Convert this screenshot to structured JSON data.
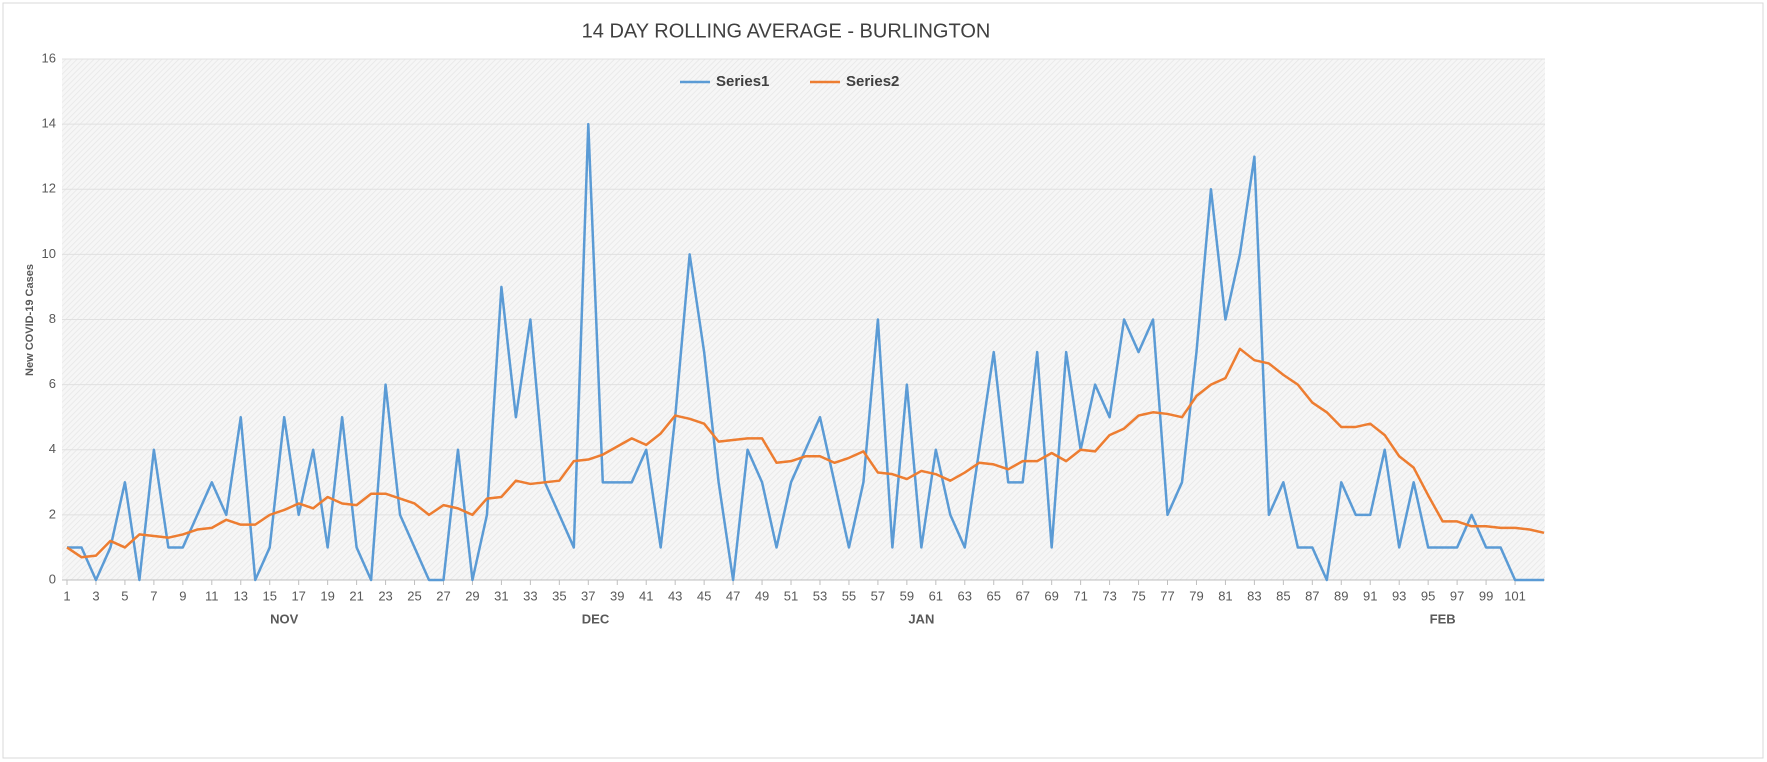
{
  "chart_data": {
    "type": "line",
    "title": "14 DAY ROLLING AVERAGE - BURLINGTON",
    "y_label": "New COVID-19 Cases",
    "x": [
      1,
      2,
      3,
      4,
      5,
      6,
      7,
      8,
      9,
      10,
      11,
      12,
      13,
      14,
      15,
      16,
      17,
      18,
      19,
      20,
      21,
      22,
      23,
      24,
      25,
      26,
      27,
      28,
      29,
      30,
      31,
      32,
      33,
      34,
      35,
      36,
      37,
      38,
      39,
      40,
      41,
      42,
      43,
      44,
      45,
      46,
      47,
      48,
      49,
      50,
      51,
      52,
      53,
      54,
      55,
      56,
      57,
      58,
      59,
      60,
      61,
      62,
      63,
      64,
      65,
      66,
      67,
      68,
      69,
      70,
      71,
      72,
      73,
      74,
      75,
      76,
      77,
      78,
      79,
      80,
      81,
      82,
      83,
      84,
      85,
      86,
      87,
      88,
      89,
      90,
      91,
      92,
      93,
      94,
      95,
      96,
      97,
      98,
      99,
      100,
      101,
      102,
      103
    ],
    "series": [
      {
        "name": "Series1",
        "color": "#5b9bd5",
        "values": [
          1,
          1,
          0,
          1,
          3,
          0,
          4,
          1,
          1,
          2,
          3,
          2,
          5,
          0,
          1,
          5,
          2,
          4,
          1,
          5,
          1,
          0,
          6,
          2,
          1,
          0,
          0,
          4,
          0,
          2,
          9,
          5,
          8,
          3,
          2,
          1,
          14,
          3,
          3,
          3,
          4,
          1,
          5,
          10,
          7,
          3,
          0,
          4,
          3,
          1,
          3,
          4,
          5,
          3,
          1,
          3,
          8,
          1,
          6,
          1,
          4,
          2,
          1,
          4,
          7,
          3,
          3,
          7,
          1,
          7,
          4,
          6,
          5,
          8,
          7,
          8,
          2,
          3,
          7,
          12,
          8,
          10,
          13,
          2,
          3,
          1,
          1,
          0,
          3,
          2,
          2,
          4,
          1,
          3,
          1,
          1,
          1,
          2,
          1,
          1,
          0,
          0,
          0
        ]
      },
      {
        "name": "Series2",
        "color": "#ed7d31",
        "values": [
          1,
          0.7,
          0.75,
          1.2,
          1.0,
          1.4,
          1.35,
          1.3,
          1.4,
          1.55,
          1.6,
          1.85,
          1.7,
          1.7,
          2.0,
          2.15,
          2.35,
          2.2,
          2.55,
          2.35,
          2.3,
          2.65,
          2.65,
          2.5,
          2.35,
          2.0,
          2.3,
          2.2,
          2.0,
          2.5,
          2.55,
          3.05,
          2.95,
          3.0,
          3.05,
          3.65,
          3.7,
          3.85,
          4.1,
          4.35,
          4.15,
          4.5,
          5.05,
          4.95,
          4.8,
          4.25,
          4.3,
          4.35,
          4.35,
          3.6,
          3.65,
          3.8,
          3.8,
          3.6,
          3.75,
          3.95,
          3.3,
          3.25,
          3.1,
          3.35,
          3.25,
          3.05,
          3.3,
          3.6,
          3.55,
          3.4,
          3.65,
          3.65,
          3.9,
          3.65,
          4.0,
          3.95,
          4.45,
          4.65,
          5.05,
          5.15,
          5.1,
          5.0,
          5.65,
          6.0,
          6.2,
          7.1,
          6.75,
          6.65,
          6.3,
          6.0,
          5.45,
          5.15,
          4.7,
          4.7,
          4.8,
          4.45,
          3.8,
          3.45,
          2.6,
          1.8,
          1.8,
          1.65,
          1.65,
          1.6,
          1.6,
          1.55,
          1.45
        ]
      }
    ],
    "xlim": [
      1,
      103
    ],
    "xticks": [
      1,
      3,
      5,
      7,
      9,
      11,
      13,
      15,
      17,
      19,
      21,
      23,
      25,
      27,
      29,
      31,
      33,
      35,
      37,
      39,
      41,
      43,
      45,
      47,
      49,
      51,
      53,
      55,
      57,
      59,
      61,
      63,
      65,
      67,
      69,
      71,
      73,
      75,
      77,
      79,
      81,
      83,
      85,
      87,
      89,
      91,
      93,
      95,
      97,
      99,
      101
    ],
    "ylim": [
      0,
      16
    ],
    "yticks": [
      0,
      2,
      4,
      6,
      8,
      10,
      12,
      14,
      16
    ],
    "grid": true,
    "legend": "top",
    "month_labels": [
      {
        "value": 16,
        "label": "NOV"
      },
      {
        "value": 37.5,
        "label": "DEC"
      },
      {
        "value": 60,
        "label": "JAN"
      },
      {
        "value": 96,
        "label": "FEB"
      }
    ]
  }
}
